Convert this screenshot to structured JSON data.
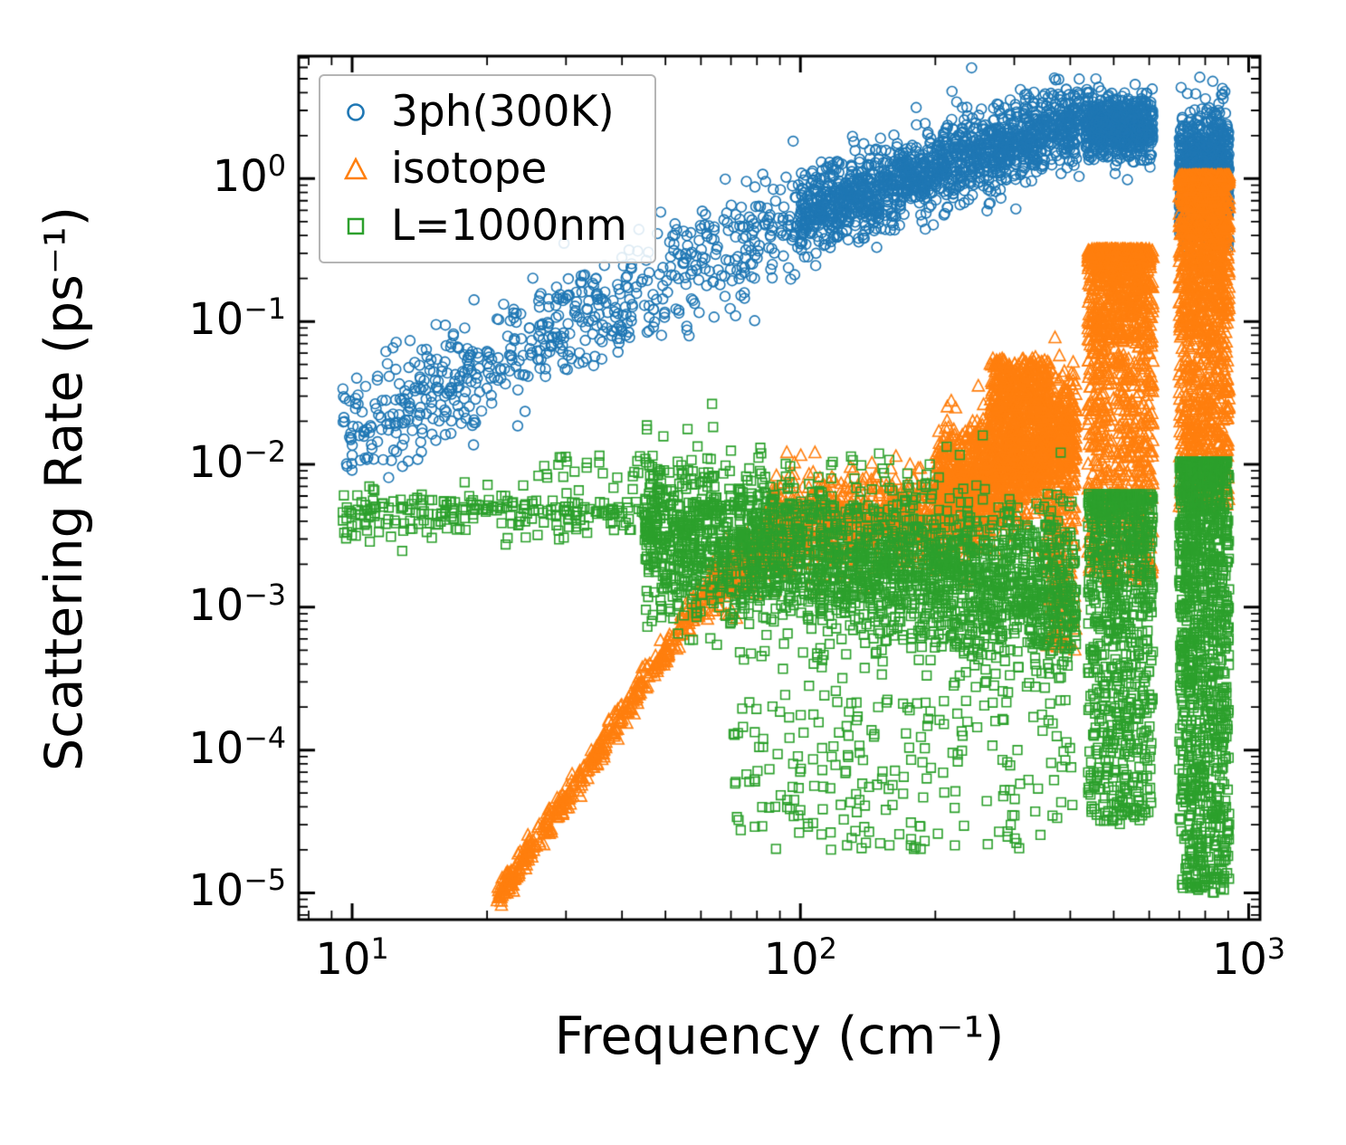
{
  "chart_data": {
    "type": "scatter",
    "title": "",
    "xlabel": "Frequency (cm⁻¹)",
    "ylabel": "Scattering Rate (ps⁻¹)",
    "x_scale": "log",
    "y_scale": "log",
    "xlim": [
      7.6,
      1060
    ],
    "ylim": [
      6.5e-06,
      7.2
    ],
    "x_major_tick_exponents": [
      1,
      2,
      3
    ],
    "y_major_tick_exponents": [
      0,
      -1,
      -2,
      -3,
      -4,
      -5
    ],
    "grid": false,
    "legend_position": "upper left",
    "series": [
      {
        "name": "3ph(300K)",
        "color": "#1f77b4",
        "marker": "circle",
        "clusters": [
          {
            "type": "powerlaw",
            "n": 650,
            "x_min": 9.5,
            "x_max": 100,
            "y_start": 0.016,
            "y_end": 0.55,
            "sigma": 0.2
          },
          {
            "type": "powerlaw",
            "n": 1500,
            "x_min": 100,
            "x_max": 420,
            "y_start": 0.55,
            "y_end": 2.6,
            "sigma": 0.14
          },
          {
            "type": "powerlaw",
            "n": 650,
            "x_min": 432,
            "x_max": 612,
            "y_start": 2.4,
            "y_end": 2.2,
            "sigma": 0.11
          },
          {
            "type": "powerlaw",
            "n": 900,
            "x_min": 700,
            "x_max": 905,
            "y_start": 1.0,
            "y_end": 1.1,
            "sigma": 0.22
          }
        ]
      },
      {
        "name": "isotope",
        "color": "#ff7f0e",
        "marker": "triangle",
        "clusters": [
          {
            "type": "powerlaw",
            "n": 450,
            "x_min": 21,
            "x_max": 62,
            "y_start": 9e-06,
            "y_end": 0.0013,
            "sigma": 0.05
          },
          {
            "type": "powerlaw",
            "n": 280,
            "x_min": 62,
            "x_max": 95,
            "y_start": 0.0013,
            "y_end": 0.0032,
            "sigma": 0.1
          },
          {
            "type": "powerlaw",
            "n": 650,
            "x_min": 85,
            "x_max": 200,
            "y_start": 0.0038,
            "y_end": 0.0042,
            "sigma": 0.16
          },
          {
            "type": "powerlaw",
            "n": 1600,
            "x_min": 200,
            "x_max": 412,
            "y_start": 0.006,
            "y_end": 0.016,
            "sigma": 0.22
          },
          {
            "type": "band",
            "n": 350,
            "x_min": 265,
            "x_max": 360,
            "y_min": 0.02,
            "y_max": 0.055,
            "bias": 1.0
          },
          {
            "type": "band",
            "n": 120,
            "x_min": 355,
            "x_max": 412,
            "y_min": 0.0005,
            "y_max": 0.005,
            "bias": 0.9
          },
          {
            "type": "band",
            "n": 1200,
            "x_min": 438,
            "x_max": 612,
            "y_min": 0.0015,
            "y_max": 0.32,
            "bias": 2.0
          },
          {
            "type": "band",
            "n": 1600,
            "x_min": 700,
            "x_max": 905,
            "y_min": 0.005,
            "y_max": 1.05,
            "bias": 2.2
          }
        ]
      },
      {
        "name": "L=1000nm",
        "color": "#2ca02c",
        "marker": "square",
        "clusters": [
          {
            "type": "powerlaw",
            "n": 240,
            "x_min": 9.5,
            "x_max": 45,
            "y_start": 0.0045,
            "y_end": 0.0048,
            "sigma": 0.08
          },
          {
            "type": "band",
            "n": 30,
            "x_min": 26,
            "x_max": 60,
            "y_min": 0.008,
            "y_max": 0.0115,
            "bias": 1.0
          },
          {
            "type": "powerlaw",
            "n": 2400,
            "x_min": 45,
            "x_max": 412,
            "y_start": 0.0035,
            "y_end": 0.0012,
            "sigma": 0.28
          },
          {
            "type": "band",
            "n": 240,
            "x_min": 70,
            "x_max": 412,
            "y_min": 2e-05,
            "y_max": 0.0005,
            "bias": 0.8
          },
          {
            "type": "band",
            "n": 850,
            "x_min": 438,
            "x_max": 612,
            "y_min": 3e-05,
            "y_max": 0.0062,
            "bias": 1.7
          },
          {
            "type": "band",
            "n": 1200,
            "x_min": 700,
            "x_max": 905,
            "y_min": 1e-05,
            "y_max": 0.0105,
            "bias": 1.7
          }
        ]
      }
    ]
  }
}
